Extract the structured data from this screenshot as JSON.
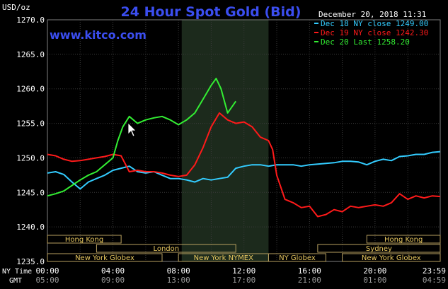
{
  "chart_data": {
    "type": "line",
    "title": "24 Hour Spot Gold (Bid)",
    "unit_label": "USD/oz",
    "watermark": "www.kitco.com",
    "timestamp": "December 20, 2018 11:31",
    "ylim": [
      1235,
      1270
    ],
    "y_ticks": [
      "1270.0",
      "1265.0",
      "1260.0",
      "1255.0",
      "1250.0",
      "1245.0",
      "1240.0",
      "1235.0"
    ],
    "ny_time_label": "NY Time",
    "gmt_label": "GMT",
    "ny_time_ticks": [
      "00:00",
      "04:00",
      "08:00",
      "12:00",
      "16:00",
      "20:00",
      "23:59"
    ],
    "gmt_ticks": [
      "05:00",
      "09:00",
      "13:00",
      "17:00",
      "21:00",
      "01:00",
      "04:59"
    ],
    "series": [
      {
        "name": "Dec 18 NY close 1249.00",
        "color": "#33ccff",
        "x": [
          0,
          0.5,
          1,
          1.5,
          2,
          2.5,
          3,
          3.5,
          4,
          4.5,
          5,
          5.5,
          6,
          6.5,
          7,
          7.5,
          8,
          8.5,
          9,
          9.5,
          10,
          10.5,
          11,
          11.5,
          12,
          12.5,
          13,
          13.5,
          14,
          14.5,
          15,
          15.5,
          16,
          16.5,
          17,
          17.5,
          18,
          18.5,
          19,
          19.5,
          20,
          20.5,
          21,
          21.5,
          22,
          22.5,
          23,
          23.5,
          23.98
        ],
        "values": [
          1247.8,
          1248.0,
          1247.6,
          1246.5,
          1245.5,
          1246.5,
          1247.0,
          1247.5,
          1248.2,
          1248.5,
          1248.8,
          1248.0,
          1247.8,
          1248.0,
          1247.5,
          1247.0,
          1247.0,
          1246.8,
          1246.5,
          1247.0,
          1246.8,
          1247.0,
          1247.2,
          1248.5,
          1248.8,
          1249.0,
          1249.0,
          1248.8,
          1249.0,
          1249.0,
          1249.0,
          1248.8,
          1249.0,
          1249.1,
          1249.2,
          1249.3,
          1249.5,
          1249.5,
          1249.4,
          1249.0,
          1249.5,
          1249.8,
          1249.6,
          1250.2,
          1250.3,
          1250.5,
          1250.5,
          1250.8,
          1250.9
        ]
      },
      {
        "name": "Dec 19 NY close 1242.30",
        "color": "#ff1a1a",
        "x": [
          0,
          0.5,
          1,
          1.5,
          2,
          2.5,
          3,
          3.5,
          4,
          4.5,
          5,
          5.5,
          6,
          6.5,
          7,
          7.5,
          8,
          8.5,
          9,
          9.5,
          10,
          10.5,
          11,
          11.5,
          12,
          12.5,
          13,
          13.5,
          13.75,
          14,
          14.5,
          15,
          15.5,
          16,
          16.5,
          17,
          17.5,
          18,
          18.5,
          19,
          19.5,
          20,
          20.5,
          21,
          21.5,
          22,
          22.5,
          23,
          23.5,
          23.98
        ],
        "values": [
          1250.5,
          1250.3,
          1249.8,
          1249.5,
          1249.6,
          1249.8,
          1250.0,
          1250.2,
          1250.5,
          1250.3,
          1248.0,
          1248.2,
          1248.0,
          1248.0,
          1247.8,
          1247.5,
          1247.3,
          1247.5,
          1249.0,
          1251.5,
          1254.5,
          1256.5,
          1255.5,
          1255.0,
          1255.2,
          1254.5,
          1253.0,
          1252.5,
          1251.2,
          1247.5,
          1244.0,
          1243.5,
          1242.8,
          1243.0,
          1241.5,
          1241.8,
          1242.5,
          1242.2,
          1243.0,
          1242.8,
          1243.0,
          1243.2,
          1243.0,
          1243.5,
          1244.8,
          1244.0,
          1244.5,
          1244.2,
          1244.5,
          1244.4
        ]
      },
      {
        "name": "Dec 20 Last 1258.20",
        "color": "#33ee33",
        "x": [
          0,
          0.5,
          1,
          1.5,
          2,
          2.5,
          3,
          3.5,
          4,
          4.3,
          4.6,
          5,
          5.5,
          6,
          6.5,
          7,
          7.5,
          8,
          8.5,
          9,
          9.5,
          10,
          10.3,
          10.6,
          11,
          11.5
        ],
        "values": [
          1244.5,
          1244.8,
          1245.2,
          1246.0,
          1246.8,
          1247.5,
          1248.0,
          1249.0,
          1250.0,
          1252.5,
          1254.5,
          1256.0,
          1255.0,
          1255.5,
          1255.8,
          1256.0,
          1255.5,
          1254.8,
          1255.5,
          1256.5,
          1258.5,
          1260.5,
          1261.5,
          1260.0,
          1256.5,
          1258.2
        ]
      }
    ],
    "market_rows": [
      [
        {
          "label": "Hong Kong",
          "start": 0,
          "end": 4.5
        },
        {
          "label": "Hong Kong",
          "start": 19.5,
          "end": 23.98
        }
      ],
      [
        {
          "label": "London",
          "start": 3,
          "end": 11.5
        },
        {
          "label": "Sydney",
          "start": 16.5,
          "end": 23.98
        }
      ],
      [
        {
          "label": "New York Globex",
          "start": 0,
          "end": 7
        },
        {
          "label": "New York NYMEX",
          "start": 8,
          "end": 13.5
        },
        {
          "label": "NY Globex",
          "start": 13.5,
          "end": 17
        },
        {
          "label": "New York Globex",
          "start": 18,
          "end": 23.98
        }
      ]
    ],
    "nymex_session": [
      8.2,
      13.5
    ]
  }
}
